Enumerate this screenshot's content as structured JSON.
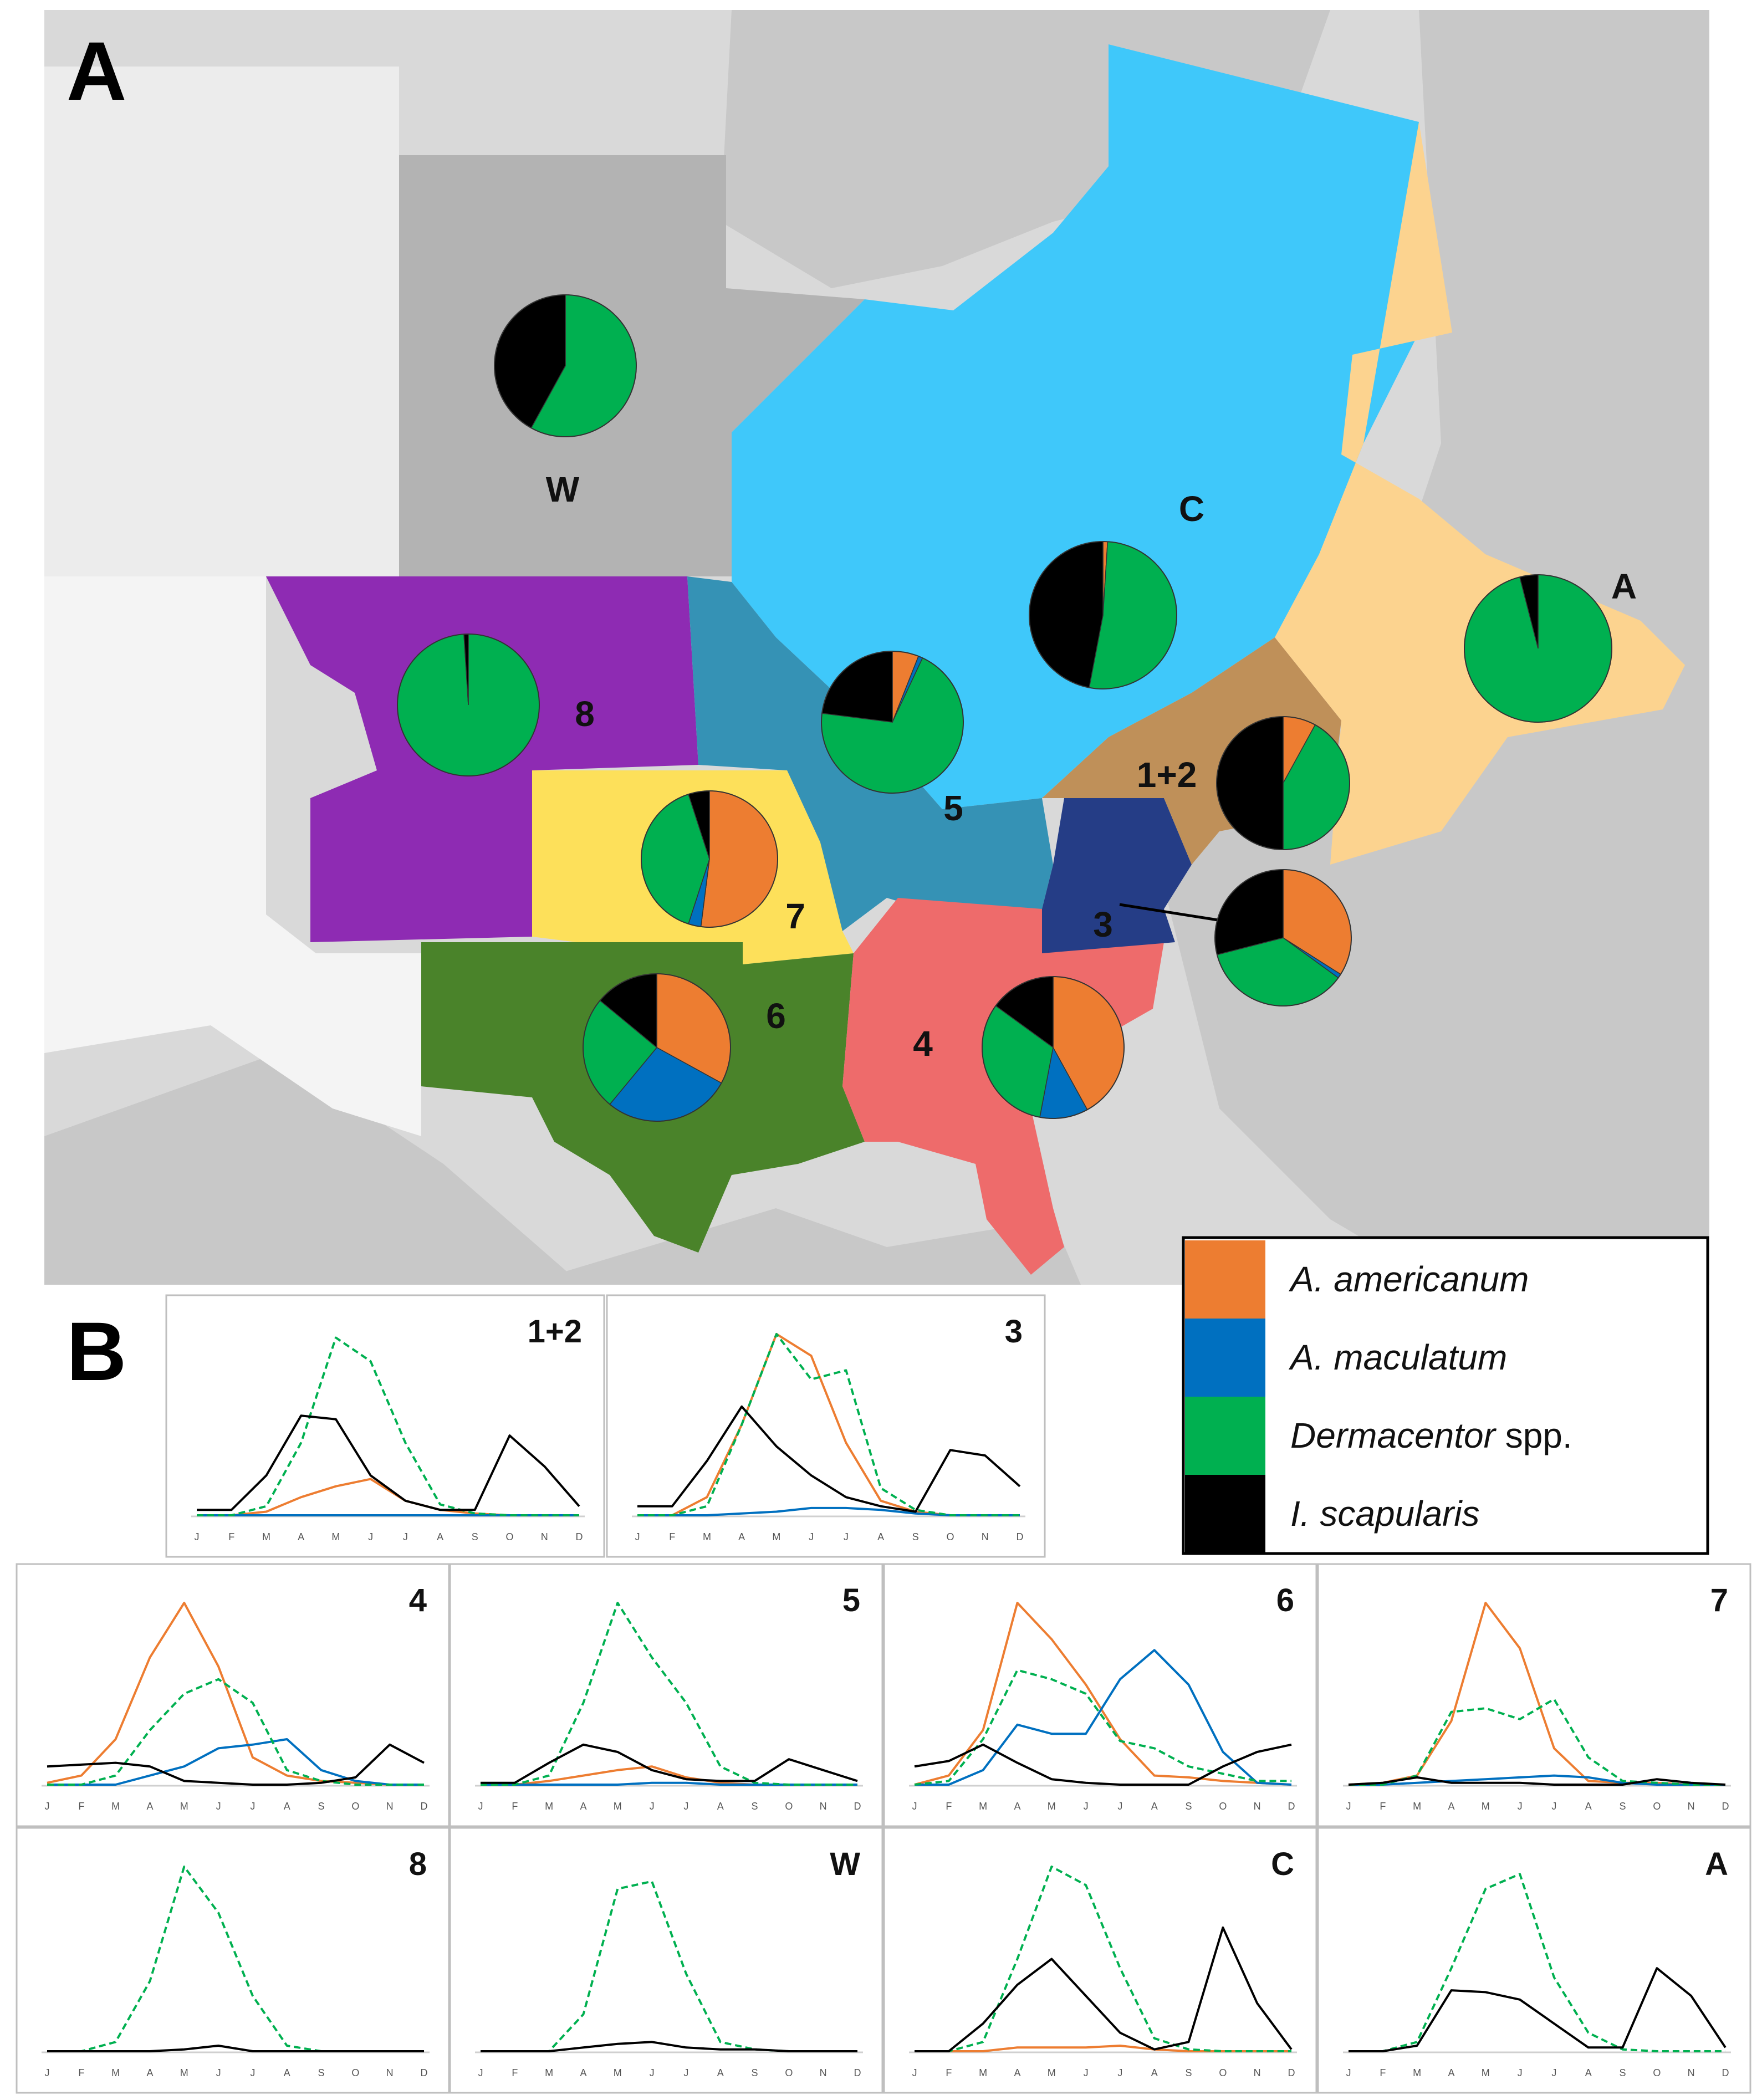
{
  "panels": {
    "a_label": "A",
    "b_label": "B"
  },
  "colors": {
    "americanum": "#ED7D31",
    "maculatum": "#0070C0",
    "dermacentor": "#00B050",
    "scapularis": "#000000",
    "ocean": "#ffffff",
    "land": "#d9d9d9",
    "region_W": "#b3b3b3",
    "region_C": "#3fc8fa",
    "region_A": "#fcd38f",
    "region_8": "#8e2bb3",
    "region_5": "#3592b5",
    "region_7": "#fde05a",
    "region_6": "#4a832a",
    "region_4": "#ee6b6b",
    "region_3": "#253d86",
    "region_12": "#bf9059"
  },
  "legend": {
    "items": [
      {
        "key": "americanum",
        "label": "A. americanum",
        "italic": "A. americanum",
        "rest": ""
      },
      {
        "key": "maculatum",
        "label": "A. maculatum",
        "italic": "A. maculatum",
        "rest": ""
      },
      {
        "key": "dermacentor",
        "label": "Dermacentor spp.",
        "italic": "Dermacentor",
        "rest": " spp."
      },
      {
        "key": "scapularis",
        "label": "I. scapularis",
        "italic": "I. scapularis",
        "rest": ""
      }
    ]
  },
  "chart_data": [
    {
      "type": "pie",
      "panel": "A",
      "series_order": [
        "A. americanum",
        "A. maculatum",
        "Dermacentor spp.",
        "I. scapularis"
      ],
      "pies": [
        {
          "region": "W",
          "values": [
            0,
            0,
            58,
            42
          ]
        },
        {
          "region": "C",
          "values": [
            1,
            0,
            52,
            47
          ]
        },
        {
          "region": "A",
          "values": [
            0,
            0,
            96,
            4
          ]
        },
        {
          "region": "8",
          "values": [
            0,
            0,
            99,
            1
          ]
        },
        {
          "region": "5",
          "values": [
            6,
            1,
            70,
            23
          ]
        },
        {
          "region": "1+2",
          "values": [
            8,
            0,
            42,
            50
          ]
        },
        {
          "region": "7",
          "values": [
            52,
            3,
            40,
            5
          ]
        },
        {
          "region": "3",
          "values": [
            34,
            1,
            36,
            29
          ]
        },
        {
          "region": "6",
          "values": [
            33,
            28,
            25,
            14
          ]
        },
        {
          "region": "4",
          "values": [
            42,
            11,
            32,
            15
          ]
        }
      ]
    },
    {
      "type": "line",
      "panel": "B",
      "x": [
        "J",
        "F",
        "M",
        "A",
        "M",
        "J",
        "J",
        "A",
        "S",
        "O",
        "N",
        "D"
      ],
      "ylim": [
        0,
        1
      ],
      "charts": [
        {
          "title": "1+2",
          "series": [
            {
              "key": "americanum",
              "values": [
                0,
                0,
                0.02,
                0.1,
                0.16,
                0.2,
                0.08,
                0.03,
                0.01,
                0,
                0,
                0
              ]
            },
            {
              "key": "maculatum",
              "values": [
                0,
                0,
                0,
                0,
                0,
                0,
                0,
                0,
                0,
                0,
                0,
                0
              ]
            },
            {
              "key": "dermacentor",
              "values": [
                0,
                0,
                0.05,
                0.4,
                0.98,
                0.85,
                0.4,
                0.06,
                0.01,
                0,
                0,
                0
              ]
            },
            {
              "key": "scapularis",
              "values": [
                0.03,
                0.03,
                0.22,
                0.55,
                0.53,
                0.22,
                0.08,
                0.03,
                0.03,
                0.44,
                0.27,
                0.05
              ]
            }
          ]
        },
        {
          "title": "3",
          "series": [
            {
              "key": "americanum",
              "values": [
                0,
                0,
                0.1,
                0.5,
                1.0,
                0.88,
                0.4,
                0.08,
                0.02,
                0,
                0,
                0
              ]
            },
            {
              "key": "maculatum",
              "values": [
                0,
                0,
                0,
                0.01,
                0.02,
                0.04,
                0.04,
                0.03,
                0.01,
                0,
                0,
                0
              ]
            },
            {
              "key": "dermacentor",
              "values": [
                0,
                0,
                0.05,
                0.5,
                1.0,
                0.75,
                0.8,
                0.15,
                0.03,
                0,
                0,
                0
              ]
            },
            {
              "key": "scapularis",
              "values": [
                0.05,
                0.05,
                0.3,
                0.6,
                0.38,
                0.22,
                0.1,
                0.05,
                0.02,
                0.36,
                0.33,
                0.16
              ]
            }
          ]
        },
        {
          "title": "4",
          "series": [
            {
              "key": "americanum",
              "values": [
                0.01,
                0.05,
                0.25,
                0.7,
                1.0,
                0.65,
                0.15,
                0.05,
                0.02,
                0.01,
                0,
                0
              ]
            },
            {
              "key": "maculatum",
              "values": [
                0,
                0,
                0,
                0.05,
                0.1,
                0.2,
                0.22,
                0.25,
                0.08,
                0.02,
                0,
                0
              ]
            },
            {
              "key": "dermacentor",
              "values": [
                0,
                0,
                0.05,
                0.3,
                0.5,
                0.58,
                0.45,
                0.08,
                0.02,
                0,
                0,
                0
              ]
            },
            {
              "key": "scapularis",
              "values": [
                0.1,
                0.11,
                0.12,
                0.1,
                0.02,
                0.01,
                0,
                0,
                0.01,
                0.04,
                0.22,
                0.12
              ]
            }
          ]
        },
        {
          "title": "5",
          "series": [
            {
              "key": "americanum",
              "values": [
                0,
                0,
                0.02,
                0.05,
                0.08,
                0.1,
                0.04,
                0.01,
                0,
                0,
                0,
                0
              ]
            },
            {
              "key": "maculatum",
              "values": [
                0,
                0,
                0,
                0,
                0,
                0.01,
                0.01,
                0,
                0,
                0,
                0,
                0
              ]
            },
            {
              "key": "dermacentor",
              "values": [
                0,
                0,
                0.05,
                0.45,
                1.0,
                0.7,
                0.45,
                0.1,
                0.01,
                0,
                0,
                0
              ]
            },
            {
              "key": "scapularis",
              "values": [
                0.01,
                0.01,
                0.12,
                0.22,
                0.18,
                0.08,
                0.03,
                0.02,
                0.02,
                0.14,
                0.08,
                0.02
              ]
            }
          ]
        },
        {
          "title": "6",
          "series": [
            {
              "key": "americanum",
              "values": [
                0,
                0.05,
                0.3,
                1.0,
                0.8,
                0.55,
                0.25,
                0.05,
                0.04,
                0.02,
                0.01,
                0
              ]
            },
            {
              "key": "maculatum",
              "values": [
                0,
                0,
                0.08,
                0.33,
                0.28,
                0.28,
                0.58,
                0.74,
                0.55,
                0.18,
                0.01,
                0
              ]
            },
            {
              "key": "dermacentor",
              "values": [
                0,
                0.02,
                0.25,
                0.63,
                0.58,
                0.5,
                0.24,
                0.2,
                0.1,
                0.06,
                0.02,
                0.02
              ]
            },
            {
              "key": "scapularis",
              "values": [
                0.1,
                0.13,
                0.22,
                0.12,
                0.03,
                0.01,
                0,
                0,
                0,
                0.1,
                0.18,
                0.22
              ]
            }
          ]
        },
        {
          "title": "7",
          "series": [
            {
              "key": "americanum",
              "values": [
                0,
                0.01,
                0.05,
                0.35,
                1.0,
                0.75,
                0.2,
                0.02,
                0.01,
                0.01,
                0,
                0
              ]
            },
            {
              "key": "maculatum",
              "values": [
                0,
                0,
                0.01,
                0.02,
                0.03,
                0.04,
                0.05,
                0.04,
                0.01,
                0,
                0,
                0
              ]
            },
            {
              "key": "dermacentor",
              "values": [
                0,
                0,
                0.05,
                0.4,
                0.42,
                0.36,
                0.47,
                0.15,
                0.02,
                0.01,
                0,
                0
              ]
            },
            {
              "key": "scapularis",
              "values": [
                0,
                0.01,
                0.04,
                0.01,
                0.01,
                0.01,
                0,
                0,
                0,
                0.03,
                0.01,
                0
              ]
            }
          ]
        },
        {
          "title": "8",
          "series": [
            {
              "key": "dermacentor",
              "values": [
                0,
                0,
                0.05,
                0.38,
                1.0,
                0.75,
                0.3,
                0.03,
                0,
                0,
                0,
                0
              ]
            },
            {
              "key": "scapularis",
              "values": [
                0,
                0,
                0,
                0,
                0.01,
                0.03,
                0,
                0,
                0,
                0,
                0,
                0
              ]
            }
          ]
        },
        {
          "title": "W",
          "series": [
            {
              "key": "dermacentor",
              "values": [
                0,
                0,
                0,
                0.2,
                0.88,
                0.92,
                0.42,
                0.05,
                0.01,
                0,
                0,
                0
              ]
            },
            {
              "key": "scapularis",
              "values": [
                0,
                0,
                0,
                0.02,
                0.04,
                0.05,
                0.02,
                0.01,
                0.01,
                0,
                0,
                0
              ]
            }
          ]
        },
        {
          "title": "C",
          "series": [
            {
              "key": "americanum",
              "values": [
                0,
                0,
                0,
                0.02,
                0.02,
                0.02,
                0.03,
                0.01,
                0,
                0,
                0,
                0
              ]
            },
            {
              "key": "dermacentor",
              "values": [
                0,
                0,
                0.05,
                0.5,
                1.0,
                0.9,
                0.45,
                0.07,
                0.01,
                0,
                0,
                0
              ]
            },
            {
              "key": "scapularis",
              "values": [
                0,
                0,
                0.15,
                0.36,
                0.5,
                0.3,
                0.1,
                0.01,
                0.05,
                0.67,
                0.26,
                0.01
              ]
            }
          ]
        },
        {
          "title": "A",
          "series": [
            {
              "key": "dermacentor",
              "values": [
                0,
                0,
                0.05,
                0.45,
                0.88,
                0.96,
                0.4,
                0.1,
                0.01,
                0,
                0,
                0
              ]
            },
            {
              "key": "scapularis",
              "values": [
                0,
                0,
                0.03,
                0.33,
                0.32,
                0.28,
                0.15,
                0.02,
                0.02,
                0.45,
                0.3,
                0.02
              ]
            }
          ]
        }
      ]
    }
  ]
}
